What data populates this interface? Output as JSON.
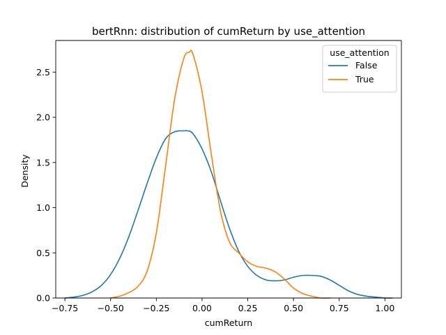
{
  "chart_data": {
    "type": "line",
    "title": "bertRnn: distribution of cumReturn by use_attention",
    "xlabel": "cumReturn",
    "ylabel": "Density",
    "xlim": [
      -0.8,
      1.09
    ],
    "ylim": [
      0,
      2.85
    ],
    "xticks": [
      -0.75,
      -0.5,
      -0.25,
      0.0,
      0.25,
      0.5,
      0.75,
      1.0
    ],
    "xtick_labels": [
      "−0.75",
      "−0.50",
      "−0.25",
      "0.00",
      "0.25",
      "0.50",
      "0.75",
      "1.00"
    ],
    "yticks": [
      0.0,
      0.5,
      1.0,
      1.5,
      2.0,
      2.5
    ],
    "ytick_labels": [
      "0.0",
      "0.5",
      "1.0",
      "1.5",
      "2.0",
      "2.5"
    ],
    "grid": false,
    "legend": {
      "title": "use_attention",
      "placement": "top-right"
    },
    "series": [
      {
        "name": "False",
        "color": "#1f77b4",
        "x": [
          -0.75,
          -0.7,
          -0.65,
          -0.6,
          -0.55,
          -0.5,
          -0.45,
          -0.4,
          -0.35,
          -0.3,
          -0.25,
          -0.2,
          -0.15,
          -0.1,
          -0.08,
          -0.05,
          0.0,
          0.05,
          0.1,
          0.15,
          0.2,
          0.25,
          0.3,
          0.35,
          0.4,
          0.45,
          0.5,
          0.55,
          0.6,
          0.65,
          0.7,
          0.75,
          0.8,
          0.85,
          0.9,
          0.95,
          1.0,
          1.04
        ],
        "y": [
          0.0,
          0.01,
          0.03,
          0.07,
          0.14,
          0.26,
          0.44,
          0.68,
          0.97,
          1.27,
          1.55,
          1.76,
          1.84,
          1.85,
          1.85,
          1.82,
          1.65,
          1.4,
          1.08,
          0.77,
          0.52,
          0.35,
          0.25,
          0.2,
          0.19,
          0.2,
          0.23,
          0.25,
          0.25,
          0.24,
          0.2,
          0.14,
          0.08,
          0.04,
          0.02,
          0.01,
          0.0,
          0.0
        ]
      },
      {
        "name": "True",
        "color": "#ff7f0e",
        "x": [
          -0.5,
          -0.45,
          -0.4,
          -0.35,
          -0.3,
          -0.25,
          -0.2,
          -0.15,
          -0.1,
          -0.07,
          -0.05,
          0.0,
          0.05,
          0.1,
          0.15,
          0.2,
          0.25,
          0.3,
          0.35,
          0.4,
          0.45,
          0.5,
          0.55,
          0.6,
          0.65,
          0.7
        ],
        "y": [
          0.0,
          0.02,
          0.06,
          0.13,
          0.3,
          0.72,
          1.45,
          2.2,
          2.65,
          2.72,
          2.7,
          2.28,
          1.6,
          0.97,
          0.62,
          0.5,
          0.4,
          0.35,
          0.33,
          0.29,
          0.21,
          0.11,
          0.05,
          0.02,
          0.0,
          0.0
        ]
      }
    ]
  }
}
